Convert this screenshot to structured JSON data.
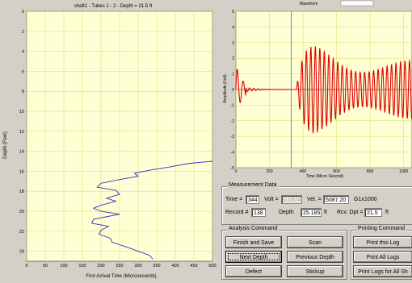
{
  "left_chart": {
    "title": "shaft1 - Tubes 1 - 2 - Depth = 21.5 ft",
    "ylabel": "Depth (Feet)",
    "xlabel": "First Arrival Time (Microseconds)",
    "xticks": [
      "0",
      "50",
      "100",
      "150",
      "200",
      "250",
      "300",
      "350",
      "400",
      "450",
      "500"
    ],
    "yticks": [
      "0",
      "2",
      "4",
      "6",
      "8",
      "10",
      "12",
      "14",
      "16",
      "18",
      "20",
      "22",
      "24"
    ]
  },
  "right_chart": {
    "top_label": "Waveform",
    "ylabel": "Amplitude (Volt)",
    "xlabel": "Time (Micro Second)",
    "xticks": [
      "0",
      "200",
      "400",
      "600",
      "800",
      "1000"
    ],
    "yticks": [
      "5",
      "4",
      "3",
      "2",
      "1",
      "0",
      "-1",
      "-2",
      "-3",
      "-4",
      "-5"
    ]
  },
  "chart_data": [
    {
      "type": "line",
      "title": "shaft1 - Tubes 1 - 2 - Depth = 21.5 ft",
      "xlabel": "First Arrival Time (Microseconds)",
      "ylabel": "Depth (Feet)",
      "xlim": [
        0,
        500
      ],
      "ylim": [
        0,
        25
      ],
      "y_inverted": true,
      "grid": true,
      "series": [
        {
          "color": "#3030c0",
          "points": [
            [
              500,
              15.0
            ],
            [
              440,
              15.2
            ],
            [
              380,
              15.6
            ],
            [
              330,
              15.9
            ],
            [
              290,
              16.2
            ],
            [
              300,
              16.5
            ],
            [
              240,
              16.9
            ],
            [
              200,
              17.2
            ],
            [
              190,
              17.6
            ],
            [
              240,
              17.9
            ],
            [
              250,
              18.3
            ],
            [
              215,
              18.7
            ],
            [
              240,
              19.0
            ],
            [
              200,
              19.4
            ],
            [
              180,
              19.7
            ],
            [
              200,
              20.0
            ],
            [
              250,
              20.3
            ],
            [
              180,
              20.8
            ],
            [
              175,
              21.2
            ],
            [
              220,
              21.5
            ],
            [
              200,
              21.9
            ],
            [
              195,
              22.3
            ],
            [
              225,
              22.7
            ],
            [
              230,
              23.1
            ],
            [
              270,
              23.6
            ],
            [
              300,
              24.0
            ],
            [
              330,
              24.4
            ],
            [
              340,
              24.8
            ]
          ]
        }
      ]
    },
    {
      "type": "line",
      "title": "",
      "xlabel": "Time (Micro Second)",
      "ylabel": "Amplitude (Volt)",
      "xlim": [
        0,
        1050
      ],
      "ylim": [
        -5,
        5
      ],
      "grid": true,
      "marker_x": 330,
      "series": [
        {
          "color": "#e00000",
          "note": "waveform sampled"
        }
      ]
    }
  ],
  "measurement": {
    "title": "Measurement Data",
    "time_label": "Time =",
    "time_value": "344",
    "volt_label": "Volt =",
    "volt_value": "0.0374",
    "vel_label": "Vel. =",
    "vel_value": "5087.20",
    "g1x_label": "G1x",
    "g1x_value": "1000",
    "record_label": "Record #",
    "record_value": "138",
    "depth_label": "Depth",
    "depth_value": "25.185",
    "depth_unit": "ft",
    "rcv_label": "Rcv. Dpt =",
    "rcv_value": "21.5",
    "rcv_unit": "ft"
  },
  "analysis": {
    "title": "Analysis Command",
    "finish_save": "Finish and Save",
    "scan": "Scan",
    "next_depth": "Next Depth",
    "previous_depth": "Previous Depth",
    "defect": "Defect",
    "stickup": "Stickup"
  },
  "printing": {
    "title": "Printing Command",
    "print_log": "Print this Log",
    "print_all": "Print All Logs",
    "print_all_shafts": "Print Logs for All Sh"
  }
}
